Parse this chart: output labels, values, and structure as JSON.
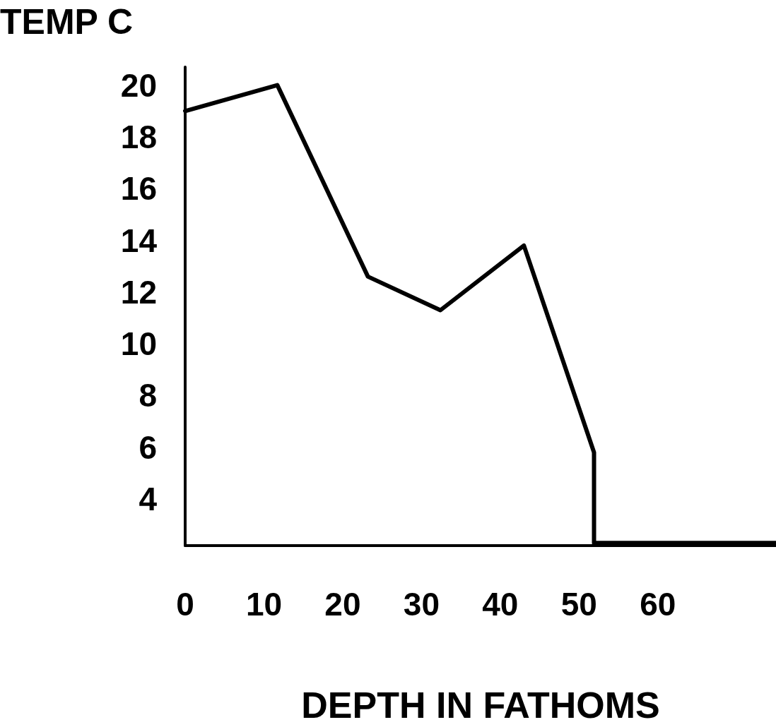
{
  "chart_data": {
    "type": "line",
    "xlabel": "DEPTH IN FATHOMS",
    "ylabel": "TEMP C",
    "x": [
      0,
      11.7,
      23.2,
      32.4,
      43,
      51.9,
      51.9,
      75
    ],
    "series": [
      {
        "color": "#000000",
        "values": [
          19.0,
          20.0,
          12.6,
          11.3,
          13.8,
          5.8,
          2.3,
          2.3
        ]
      }
    ],
    "xlim": [
      0,
      75
    ],
    "xticks": [
      0,
      10,
      20,
      30,
      40,
      50,
      60
    ],
    "ylim": [
      2.2,
      20.7
    ],
    "yticks": [
      4,
      6,
      8,
      10,
      12,
      14,
      16,
      18,
      20
    ],
    "grid": false,
    "marker": "none",
    "line_style": "solid"
  }
}
